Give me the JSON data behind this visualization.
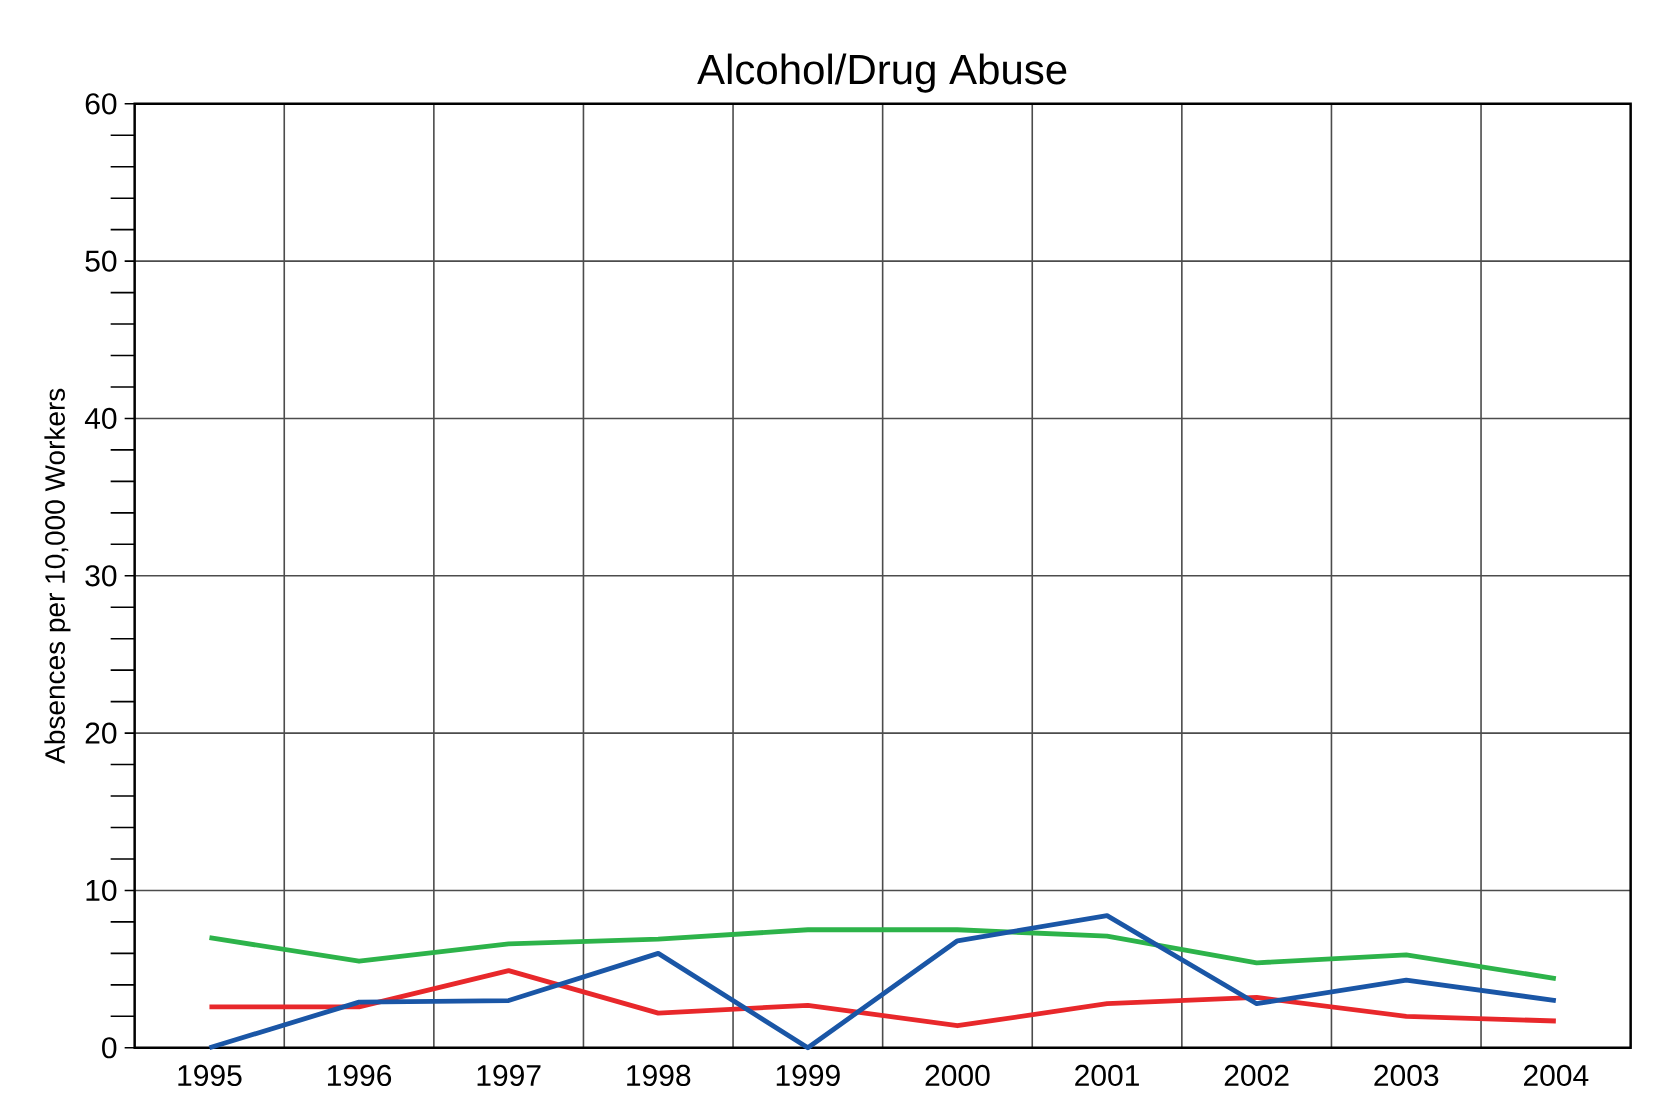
{
  "chart_data": {
    "type": "line",
    "title": "Alcohol/Drug Abuse",
    "ylabel": "Absences per 10,000 Workers",
    "categories": [
      "1995",
      "1996",
      "1997",
      "1998",
      "1999",
      "2000",
      "2001",
      "2002",
      "2003",
      "2004"
    ],
    "series": [
      {
        "color": "#2db34a",
        "values": [
          7.0,
          5.5,
          6.6,
          6.9,
          7.5,
          7.5,
          7.1,
          5.4,
          5.9,
          4.4
        ]
      },
      {
        "color": "#e8282b",
        "values": [
          2.6,
          2.6,
          4.9,
          2.2,
          2.7,
          1.4,
          2.8,
          3.2,
          2.0,
          1.7
        ]
      },
      {
        "color": "#1a56a6",
        "values": [
          0,
          2.9,
          3.0,
          6.0,
          0,
          6.8,
          8.4,
          2.8,
          4.3,
          3.0
        ]
      }
    ],
    "ylim": [
      0,
      60
    ],
    "yticks": [
      0,
      10,
      20,
      30,
      40,
      50,
      60
    ],
    "grid": true,
    "marker": "none",
    "line_style": "solid"
  }
}
